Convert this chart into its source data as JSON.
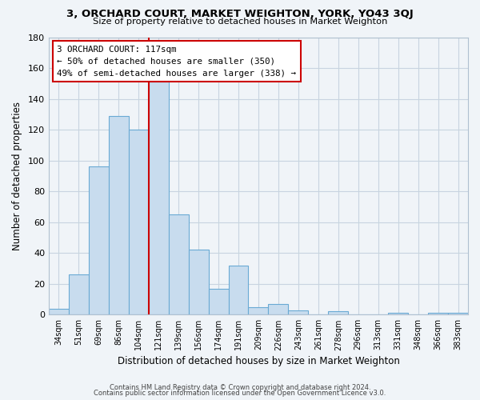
{
  "title": "3, ORCHARD COURT, MARKET WEIGHTON, YORK, YO43 3QJ",
  "subtitle": "Size of property relative to detached houses in Market Weighton",
  "xlabel": "Distribution of detached houses by size in Market Weighton",
  "ylabel": "Number of detached properties",
  "bar_labels": [
    "34sqm",
    "51sqm",
    "69sqm",
    "86sqm",
    "104sqm",
    "121sqm",
    "139sqm",
    "156sqm",
    "174sqm",
    "191sqm",
    "209sqm",
    "226sqm",
    "243sqm",
    "261sqm",
    "278sqm",
    "296sqm",
    "313sqm",
    "331sqm",
    "348sqm",
    "366sqm",
    "383sqm"
  ],
  "bar_heights": [
    4,
    26,
    96,
    129,
    120,
    151,
    65,
    42,
    17,
    32,
    5,
    7,
    3,
    0,
    2,
    0,
    0,
    1,
    0,
    1,
    1
  ],
  "bar_color": "#c8dcee",
  "bar_edge_color": "#6aaad4",
  "vline_color": "#cc0000",
  "vline_index": 5,
  "annotation_title": "3 ORCHARD COURT: 117sqm",
  "annotation_line1": "← 50% of detached houses are smaller (350)",
  "annotation_line2": "49% of semi-detached houses are larger (338) →",
  "annotation_box_color": "#ffffff",
  "annotation_box_edge": "#cc0000",
  "ylim": [
    0,
    180
  ],
  "yticks": [
    0,
    20,
    40,
    60,
    80,
    100,
    120,
    140,
    160,
    180
  ],
  "footer1": "Contains HM Land Registry data © Crown copyright and database right 2024.",
  "footer2": "Contains public sector information licensed under the Open Government Licence v3.0.",
  "background_color": "#f0f4f8",
  "plot_bg_color": "#f0f4f8",
  "grid_color": "#c8d4e0"
}
